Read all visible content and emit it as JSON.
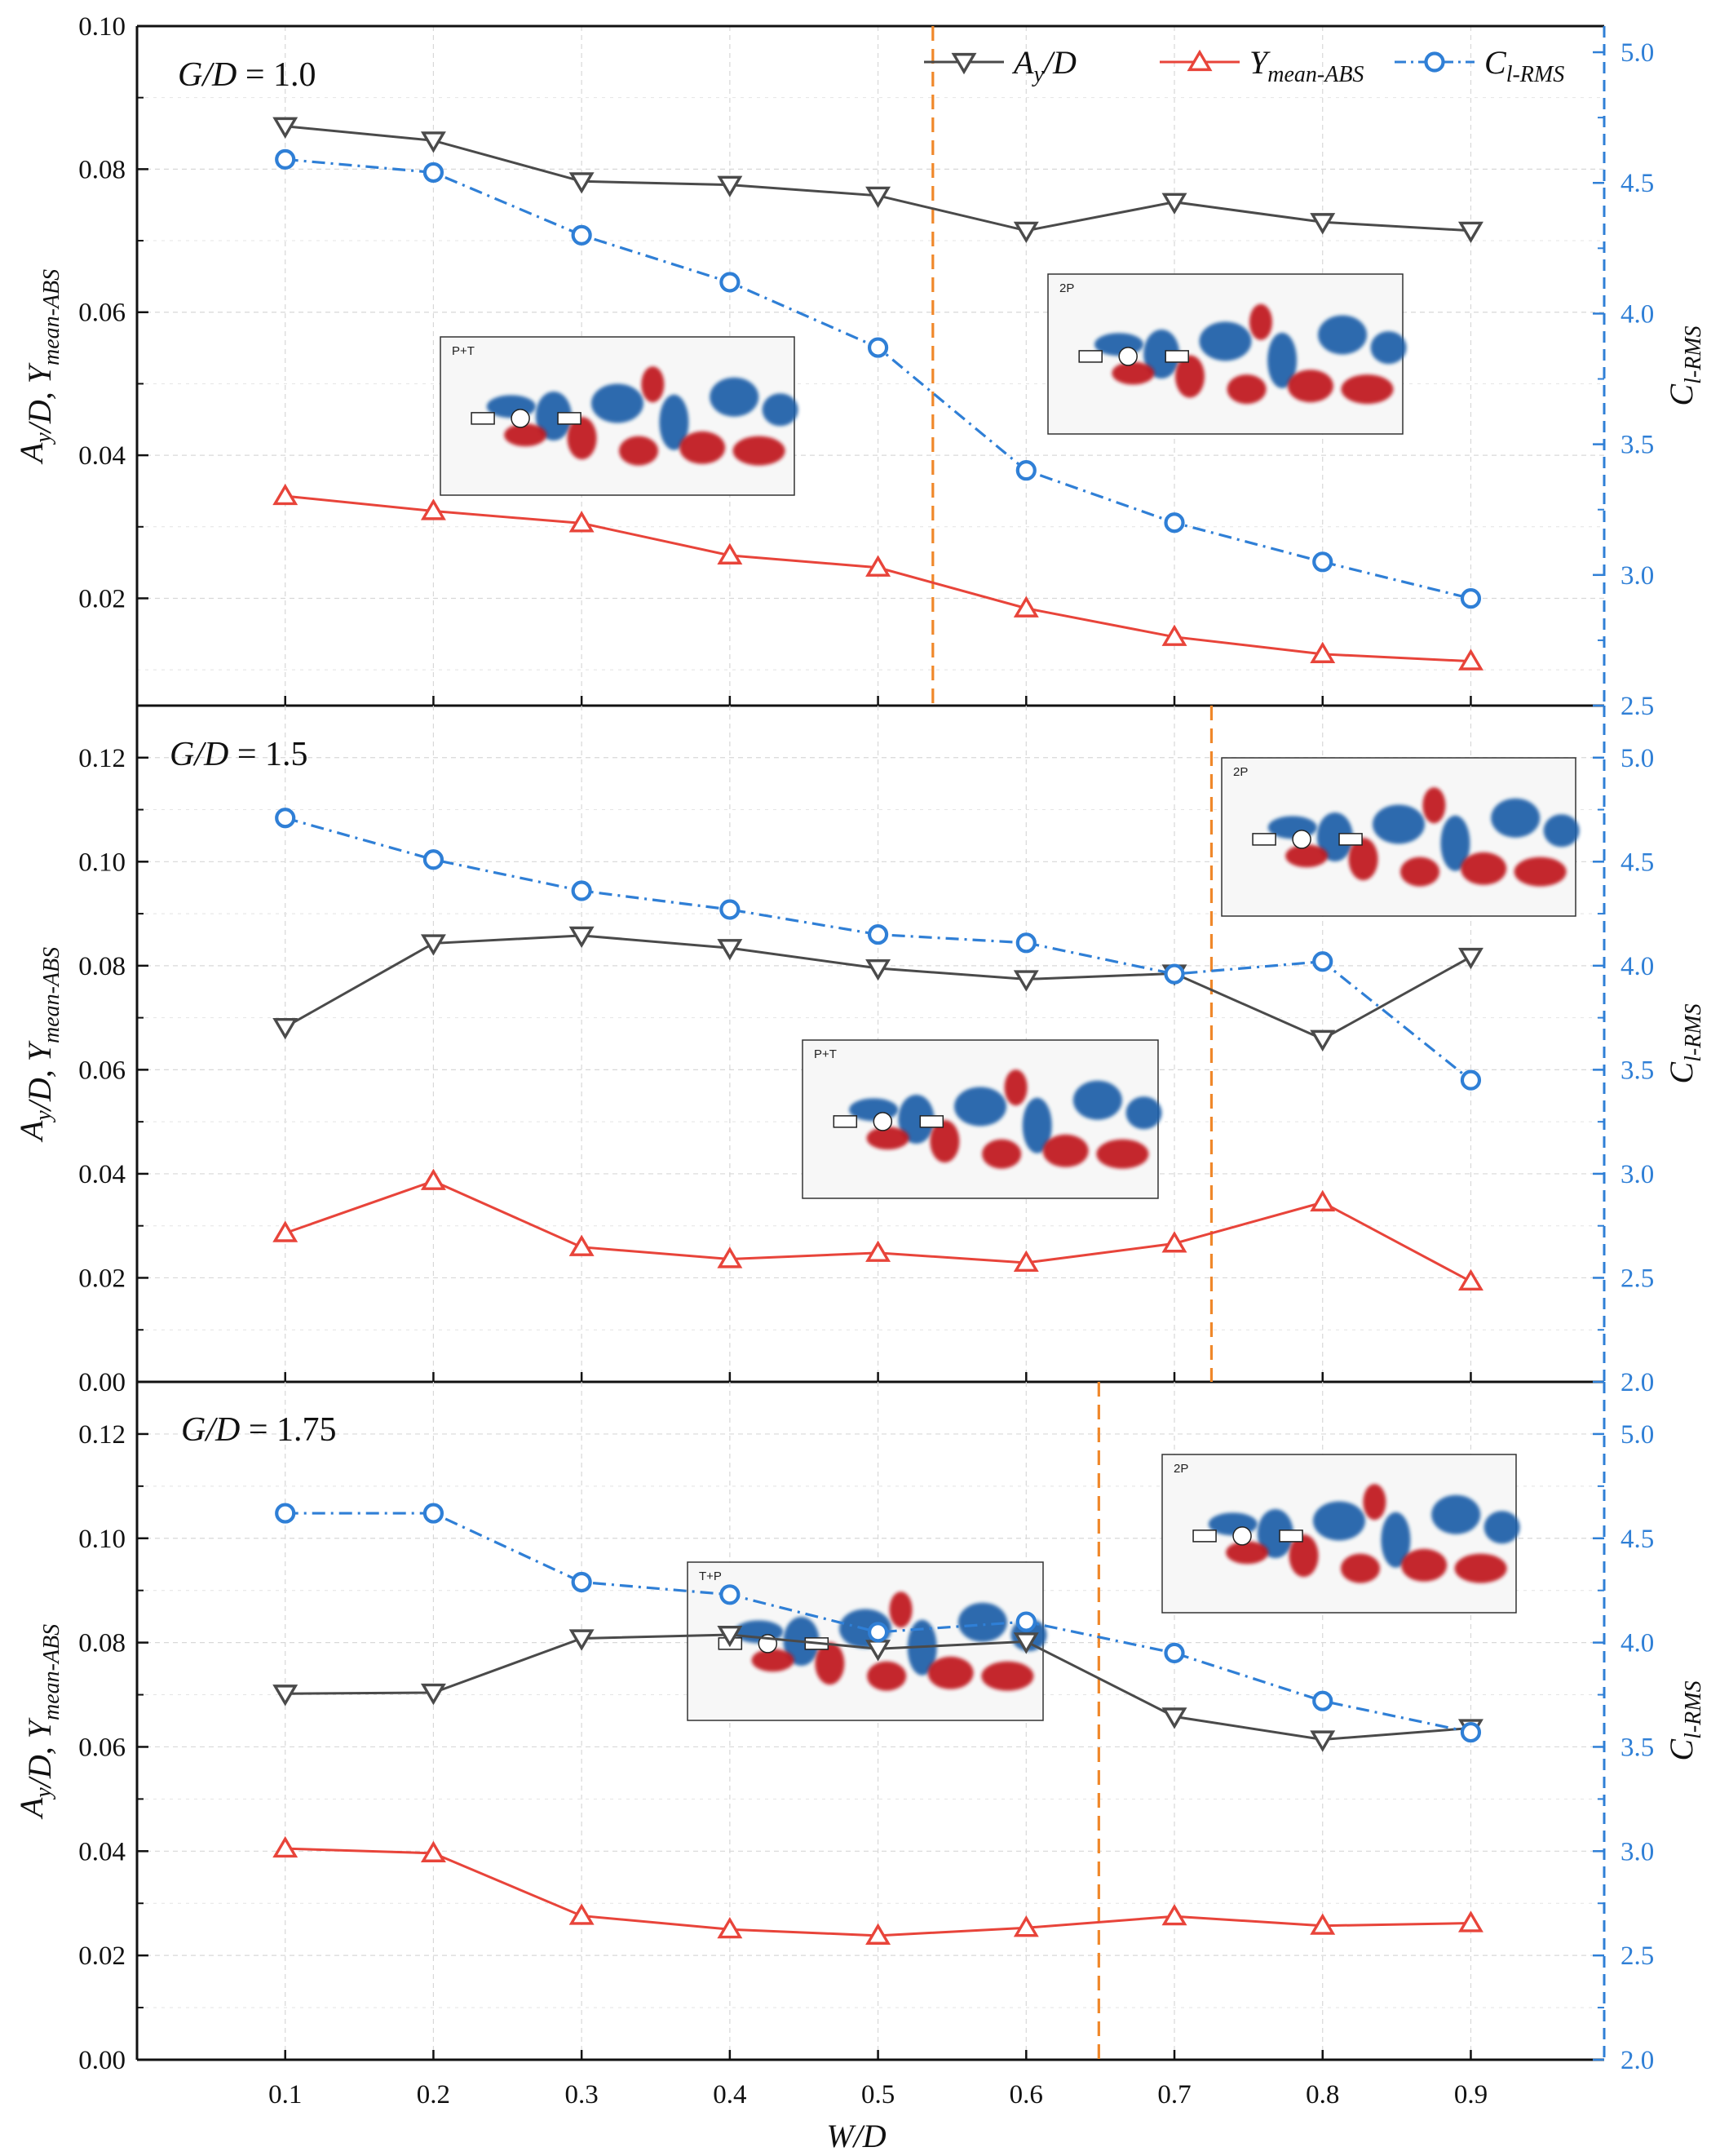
{
  "colors": {
    "ay": "#4a4a4a",
    "ymean": "#e8443a",
    "clrms": "#2f7fd6",
    "transition": "#f0882a",
    "vortex_red": "#c0171f",
    "vortex_blue": "#1e5fa8"
  },
  "legend": [
    {
      "key": "ay",
      "label": "A",
      "sub": "y",
      "rest": "/D",
      "marker": "triangle-down"
    },
    {
      "key": "ymean",
      "label": "Y",
      "sub": "mean-ABS",
      "rest": "",
      "marker": "triangle-up"
    },
    {
      "key": "clrms",
      "label": "C",
      "sub": "l-RMS",
      "rest": "",
      "marker": "circle"
    }
  ],
  "x_axis_title": "W/D",
  "y_left_title": "A_y/D, Y_mean-ABS",
  "y_right_title": "C_l-RMS",
  "chart_data": [
    {
      "type": "line",
      "title": "G/D = 1.0",
      "gd_label": "G/D",
      "gd_value": "= 1.0",
      "x": [
        0.1,
        0.2,
        0.3,
        0.4,
        0.5,
        0.6,
        0.7,
        0.8,
        0.9
      ],
      "xlim": [
        0.0,
        0.99
      ],
      "x_ticks": [
        "0.1",
        "0.2",
        "0.3",
        "0.4",
        "0.5",
        "0.6",
        "0.7",
        "0.8",
        "0.9"
      ],
      "ylim_left": [
        0.005,
        0.1
      ],
      "y_left_ticks": [
        "0.02",
        "0.04",
        "0.06",
        "0.08",
        "0.10"
      ],
      "y_left_tick_values": [
        0.02,
        0.04,
        0.06,
        0.08,
        0.1
      ],
      "ylim_right": [
        2.5,
        5.1
      ],
      "y_right_ticks": [
        "2.5",
        "3.0",
        "3.5",
        "4.0",
        "4.5",
        "5.0"
      ],
      "y_right_tick_values": [
        2.5,
        3.0,
        3.5,
        4.0,
        4.5,
        5.0
      ],
      "series": [
        {
          "name": "A_y/D",
          "key": "ay",
          "axis": "left",
          "values": [
            0.086,
            0.084,
            0.0783,
            0.0778,
            0.0763,
            0.0714,
            0.0754,
            0.0726,
            0.0714
          ]
        },
        {
          "name": "Y_mean-ABS",
          "key": "ymean",
          "axis": "left",
          "values": [
            0.0343,
            0.0322,
            0.0305,
            0.026,
            0.0243,
            0.0186,
            0.0146,
            0.0122,
            0.0112
          ]
        },
        {
          "name": "C_l-RMS",
          "key": "clrms",
          "axis": "right",
          "values": [
            4.59,
            4.54,
            4.3,
            4.12,
            3.87,
            3.4,
            3.2,
            3.05,
            2.91
          ]
        }
      ],
      "transition_x": 0.537,
      "insets": [
        {
          "label": "P+T",
          "bodies": 3
        },
        {
          "label": "2P",
          "bodies": 3
        }
      ]
    },
    {
      "type": "line",
      "title": "G/D = 1.5",
      "gd_label": "G/D",
      "gd_value": "= 1.5",
      "x": [
        0.1,
        0.2,
        0.3,
        0.4,
        0.5,
        0.6,
        0.7,
        0.8,
        0.9
      ],
      "xlim": [
        0.0,
        0.99
      ],
      "ylim_left": [
        0.0,
        0.13
      ],
      "y_left_ticks": [
        "0.00",
        "0.02",
        "0.04",
        "0.06",
        "0.08",
        "0.10",
        "0.12"
      ],
      "y_left_tick_values": [
        0.0,
        0.02,
        0.04,
        0.06,
        0.08,
        0.1,
        0.12
      ],
      "ylim_right": [
        2.0,
        5.25
      ],
      "y_right_ticks": [
        "2.0",
        "2.5",
        "3.0",
        "3.5",
        "4.0",
        "4.5",
        "5.0"
      ],
      "y_right_tick_values": [
        2.0,
        2.5,
        3.0,
        3.5,
        4.0,
        4.5,
        5.0
      ],
      "series": [
        {
          "name": "A_y/D",
          "key": "ay",
          "axis": "left",
          "values": [
            0.0682,
            0.0843,
            0.0858,
            0.0834,
            0.0795,
            0.0774,
            0.0785,
            0.0659,
            0.0817
          ]
        },
        {
          "name": "Y_mean-ABS",
          "key": "ymean",
          "axis": "left",
          "values": [
            0.0286,
            0.0386,
            0.0259,
            0.0236,
            0.0248,
            0.0229,
            0.0266,
            0.0345,
            0.0193
          ]
        },
        {
          "name": "C_l-RMS",
          "key": "clrms",
          "axis": "right",
          "values": [
            4.71,
            4.51,
            4.36,
            4.27,
            4.15,
            4.11,
            3.96,
            4.02,
            3.45
          ]
        }
      ],
      "transition_x": 0.725,
      "insets": [
        {
          "label": "2P",
          "bodies": 3
        },
        {
          "label": "P+T",
          "bodies": 3
        }
      ]
    },
    {
      "type": "line",
      "title": "G/D = 1.75",
      "gd_label": "G/D",
      "gd_value": "= 1.75",
      "x": [
        0.1,
        0.2,
        0.3,
        0.4,
        0.5,
        0.6,
        0.7,
        0.8,
        0.9
      ],
      "xlim": [
        0.0,
        0.99
      ],
      "ylim_left": [
        0.0,
        0.13
      ],
      "y_left_ticks": [
        "0.00",
        "0.02",
        "0.04",
        "0.06",
        "0.08",
        "0.10",
        "0.12"
      ],
      "y_left_tick_values": [
        0.0,
        0.02,
        0.04,
        0.06,
        0.08,
        0.1,
        0.12
      ],
      "ylim_right": [
        2.0,
        5.25
      ],
      "y_right_ticks": [
        "2.0",
        "2.5",
        "3.0",
        "3.5",
        "4.0",
        "4.5",
        "5.0"
      ],
      "y_right_tick_values": [
        2.0,
        2.5,
        3.0,
        3.5,
        4.0,
        4.5,
        5.0
      ],
      "series": [
        {
          "name": "A_y/D",
          "key": "ay",
          "axis": "left",
          "values": [
            0.0702,
            0.0704,
            0.0808,
            0.0815,
            0.0788,
            0.0802,
            0.0658,
            0.0614,
            0.0636
          ]
        },
        {
          "name": "Y_mean-ABS",
          "key": "ymean",
          "axis": "left",
          "values": [
            0.0405,
            0.0396,
            0.0276,
            0.025,
            0.0238,
            0.0253,
            0.0275,
            0.0257,
            0.0262
          ]
        },
        {
          "name": "C_l-RMS",
          "key": "clrms",
          "axis": "right",
          "values": [
            4.62,
            4.62,
            4.29,
            4.23,
            4.05,
            4.1,
            3.95,
            3.72,
            3.57
          ]
        }
      ],
      "transition_x": 0.649,
      "insets": [
        {
          "label": "2P",
          "bodies": 3
        },
        {
          "label": "T+P",
          "bodies": 3
        }
      ]
    }
  ]
}
